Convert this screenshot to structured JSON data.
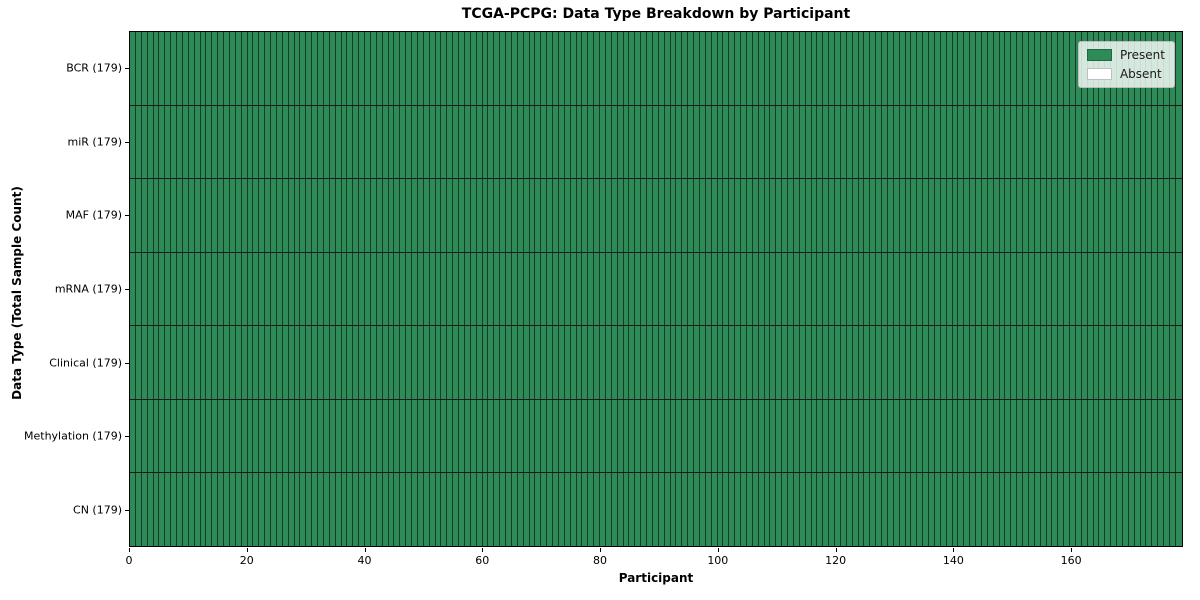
{
  "chart_data": {
    "type": "heatmap",
    "title": "TCGA-PCPG: Data Type Breakdown by Participant",
    "xlabel": "Participant",
    "ylabel": "Data Type (Total Sample Count)",
    "n_participants": 179,
    "xlim": [
      0,
      179
    ],
    "x_ticks": [
      0,
      20,
      40,
      60,
      80,
      100,
      120,
      140,
      160
    ],
    "rows": [
      {
        "label": "BCR (179)",
        "present_count": 179,
        "absent_count": 0,
        "all_present": true
      },
      {
        "label": "miR (179)",
        "present_count": 179,
        "absent_count": 0,
        "all_present": true
      },
      {
        "label": "MAF (179)",
        "present_count": 179,
        "absent_count": 0,
        "all_present": true
      },
      {
        "label": "mRNA (179)",
        "present_count": 179,
        "absent_count": 0,
        "all_present": true
      },
      {
        "label": "Clinical (179)",
        "present_count": 179,
        "absent_count": 0,
        "all_present": true
      },
      {
        "label": "Methylation (179)",
        "present_count": 179,
        "absent_count": 0,
        "all_present": true
      },
      {
        "label": "CN (179)",
        "present_count": 179,
        "absent_count": 0,
        "all_present": true
      }
    ],
    "legend": [
      {
        "label": "Present",
        "color": "#2e8b57"
      },
      {
        "label": "Absent",
        "color": "#ffffff"
      }
    ],
    "colors": {
      "present": "#2e8b57",
      "absent": "#ffffff",
      "cell_grid_line": "rgba(0,0,0,0.55)",
      "row_separator": "#1a1a1a",
      "axis": "#000000"
    },
    "layout": {
      "grid": "cell-borders",
      "legend_position": "upper-right-inside"
    }
  }
}
